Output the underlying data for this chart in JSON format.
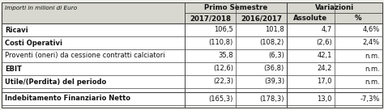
{
  "header_note": "Importi in milioni di Euro",
  "group_headers": [
    "Primo Semestre",
    "Variazioni"
  ],
  "col_headers": [
    "2017/2018",
    "2016/2017",
    "Assolute",
    "%"
  ],
  "rows": [
    {
      "label": "Ricavi",
      "bold": true,
      "values": [
        "106,5",
        "101,8",
        "4,7",
        "4,6%"
      ]
    },
    {
      "label": "Costi Operativi",
      "bold": true,
      "values": [
        "(110,8)",
        "(108,2)",
        "(2,6)",
        "2,4%"
      ]
    },
    {
      "label": "Proventi (oneri) da cessione contratti calciatori",
      "bold": false,
      "values": [
        "35,8",
        "(6,3)",
        "42,1",
        "n.m."
      ]
    },
    {
      "label": "EBIT",
      "bold": true,
      "values": [
        "(12,6)",
        "(36,8)",
        "24,2",
        "n.m."
      ]
    },
    {
      "label": "Utile/(Perdita) del periodo",
      "bold": true,
      "values": [
        "(22,3)",
        "(39,3)",
        "17,0",
        "n.m."
      ]
    }
  ],
  "separator_row": {
    "label": "Indebitamento Finanziario Netto",
    "bold": true,
    "values": [
      "(165,3)",
      "(178,3)",
      "13,0",
      "-7,3%"
    ]
  },
  "bg_color": "#f0f0eb",
  "header_bg": "#d8d8d0",
  "white_bg": "#ffffff",
  "line_color": "#444444",
  "text_color": "#111111",
  "note_color": "#333333"
}
